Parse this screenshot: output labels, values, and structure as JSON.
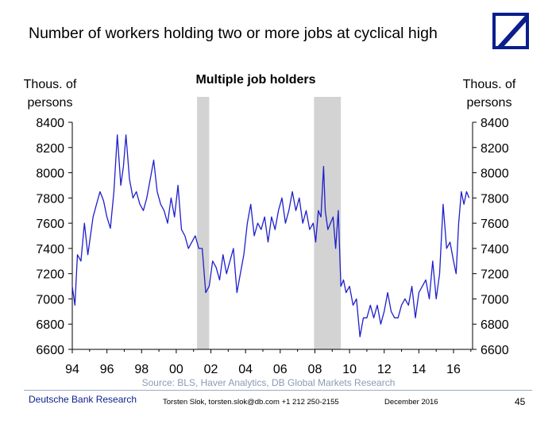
{
  "slide": {
    "title": "Number of workers holding two or more jobs at cyclical high"
  },
  "footer": {
    "brand": "Deutsche Bank Research",
    "author": "Torsten Slok, torsten.slok@db.com  +1 212 250-2155",
    "date": "December 2016",
    "page": "45"
  },
  "chart_data": {
    "type": "line",
    "title": "Multiple job holders",
    "ylabel_left": "Thous. of persons",
    "ylabel_right": "Thous. of persons",
    "source": "Source: BLS, Haver Analytics, DB Global Markets Research",
    "ylim": [
      6600,
      8400
    ],
    "xlim": [
      1994,
      2017.1
    ],
    "yticks": [
      6600,
      6800,
      7000,
      7200,
      7400,
      7600,
      7800,
      8000,
      8200,
      8400
    ],
    "xticks": [
      1994,
      1996,
      1998,
      2000,
      2002,
      2004,
      2006,
      2008,
      2010,
      2012,
      2014,
      2016
    ],
    "xtick_labels": [
      "94",
      "96",
      "98",
      "00",
      "02",
      "04",
      "06",
      "08",
      "10",
      "12",
      "14",
      "16"
    ],
    "recessions": [
      [
        2001.2,
        2001.9
      ],
      [
        2007.95,
        2009.5
      ]
    ],
    "colors": {
      "series": "#1f1fcc",
      "recession": "#d3d3d3"
    },
    "grid": false,
    "series": [
      {
        "x": [
          1994.0,
          1994.15,
          1994.3,
          1994.5,
          1994.7,
          1994.9,
          1995.0,
          1995.2,
          1995.4,
          1995.6,
          1995.8,
          1996.0,
          1996.2,
          1996.4,
          1996.6,
          1996.8,
          1996.95,
          1997.1,
          1997.3,
          1997.5,
          1997.7,
          1997.9,
          1998.1,
          1998.3,
          1998.5,
          1998.7,
          1998.9,
          1999.1,
          1999.3,
          1999.5,
          1999.7,
          1999.9,
          2000.1,
          2000.3,
          2000.5,
          2000.7,
          2000.9,
          2001.1,
          2001.3,
          2001.5,
          2001.7,
          2001.9,
          2002.1,
          2002.3,
          2002.5,
          2002.7,
          2002.9,
          2003.1,
          2003.3,
          2003.5,
          2003.7,
          2003.9,
          2004.1,
          2004.3,
          2004.5,
          2004.7,
          2004.9,
          2005.1,
          2005.3,
          2005.5,
          2005.7,
          2005.9,
          2006.1,
          2006.3,
          2006.5,
          2006.7,
          2006.9,
          2007.1,
          2007.3,
          2007.5,
          2007.7,
          2007.9,
          2008.05,
          2008.2,
          2008.35,
          2008.5,
          2008.6,
          2008.75,
          2008.9,
          2009.05,
          2009.2,
          2009.35,
          2009.5,
          2009.65,
          2009.8,
          2010.0,
          2010.2,
          2010.4,
          2010.6,
          2010.8,
          2011.0,
          2011.2,
          2011.4,
          2011.6,
          2011.8,
          2012.0,
          2012.2,
          2012.4,
          2012.6,
          2012.8,
          2013.0,
          2013.2,
          2013.4,
          2013.6,
          2013.8,
          2014.0,
          2014.2,
          2014.4,
          2014.6,
          2014.8,
          2015.0,
          2015.2,
          2015.4,
          2015.6,
          2015.8,
          2016.0,
          2016.15,
          2016.3,
          2016.45,
          2016.6,
          2016.75,
          2016.9
        ],
        "values": [
          7100,
          6950,
          7350,
          7300,
          7600,
          7350,
          7450,
          7650,
          7750,
          7850,
          7780,
          7650,
          7560,
          7850,
          8300,
          7900,
          8050,
          8300,
          7950,
          7800,
          7850,
          7750,
          7700,
          7800,
          7950,
          8100,
          7850,
          7750,
          7700,
          7600,
          7800,
          7650,
          7900,
          7550,
          7500,
          7400,
          7450,
          7500,
          7400,
          7400,
          7050,
          7100,
          7300,
          7250,
          7150,
          7350,
          7200,
          7300,
          7400,
          7050,
          7200,
          7350,
          7600,
          7750,
          7500,
          7600,
          7550,
          7650,
          7450,
          7650,
          7550,
          7700,
          7800,
          7600,
          7700,
          7850,
          7700,
          7800,
          7600,
          7700,
          7550,
          7600,
          7450,
          7700,
          7650,
          8050,
          7700,
          7550,
          7600,
          7650,
          7400,
          7700,
          7100,
          7150,
          7050,
          7100,
          6950,
          7000,
          6700,
          6850,
          6850,
          6950,
          6850,
          6950,
          6800,
          6900,
          7050,
          6900,
          6850,
          6850,
          6950,
          7000,
          6950,
          7100,
          6850,
          7050,
          7100,
          7150,
          7000,
          7300,
          7000,
          7200,
          7750,
          7400,
          7450,
          7300,
          7200,
          7600,
          7850,
          7750,
          7850,
          7800
        ]
      }
    ]
  }
}
